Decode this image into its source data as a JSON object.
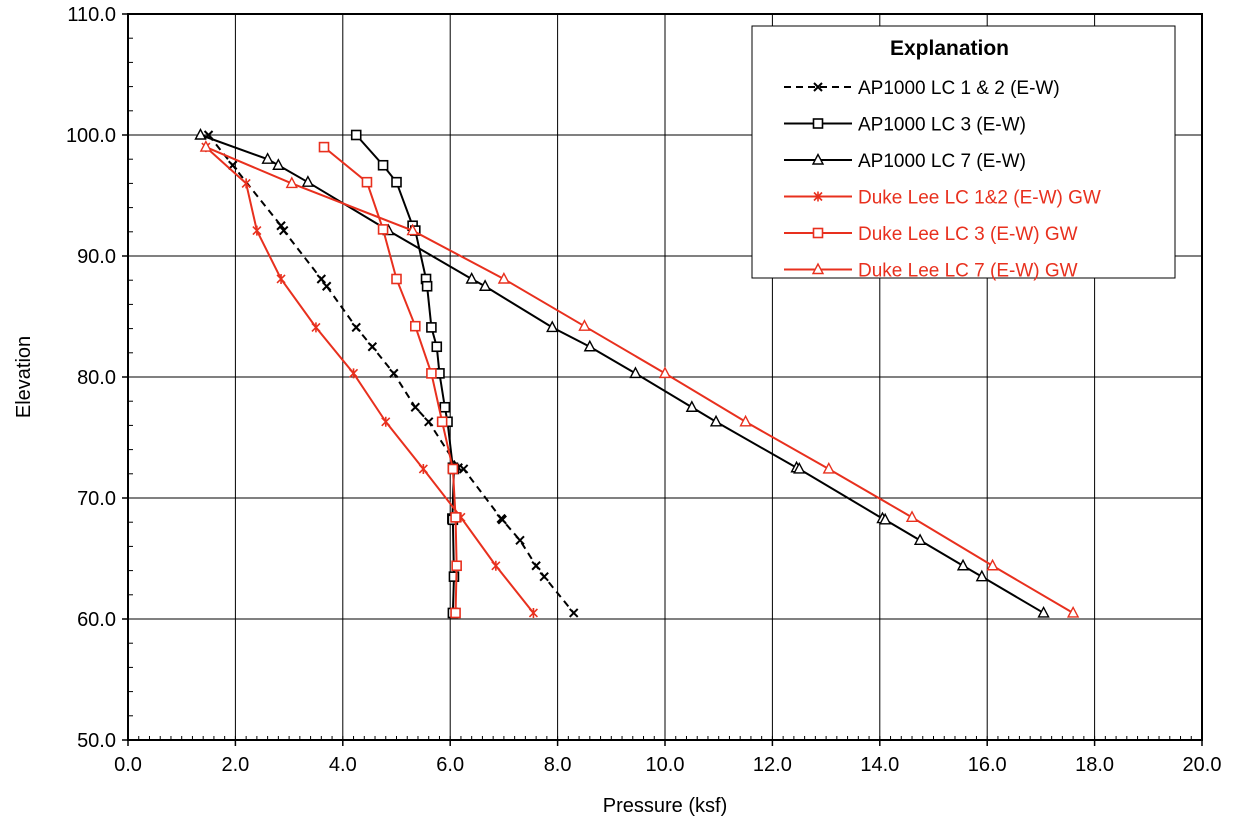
{
  "chart_data": {
    "type": "line",
    "title": "",
    "xlabel": "Pressure (ksf)",
    "ylabel": "Elevation",
    "xlim": [
      0,
      20
    ],
    "ylim": [
      50,
      110
    ],
    "x_ticks": [
      0,
      2,
      4,
      6,
      8,
      10,
      12,
      14,
      16,
      18,
      20
    ],
    "y_ticks": [
      50,
      60,
      70,
      80,
      90,
      100,
      110
    ],
    "x_tick_labels": [
      "0.0",
      "2.0",
      "4.0",
      "6.0",
      "8.0",
      "10.0",
      "12.0",
      "14.0",
      "16.0",
      "18.0",
      "20.0"
    ],
    "y_tick_labels": [
      "50.0",
      "60.0",
      "70.0",
      "80.0",
      "90.0",
      "100.0",
      "110.0"
    ],
    "grid": true,
    "legend": {
      "title": "Explanation",
      "position": "top-right"
    },
    "series": [
      {
        "name": "AP1000 LC 1 & 2 (E-W)",
        "color": "#000000",
        "dash": "dashed",
        "marker": "x",
        "points": [
          [
            1.5,
            100
          ],
          [
            1.95,
            97.5
          ],
          [
            2.85,
            92.5
          ],
          [
            2.9,
            92.1
          ],
          [
            3.6,
            88.1
          ],
          [
            3.7,
            87.5
          ],
          [
            4.25,
            84.1
          ],
          [
            4.55,
            82.5
          ],
          [
            4.95,
            80.3
          ],
          [
            5.35,
            77.5
          ],
          [
            5.6,
            76.3
          ],
          [
            6.15,
            72.5
          ],
          [
            6.25,
            72.4
          ],
          [
            6.95,
            68.3
          ],
          [
            6.97,
            68.2
          ],
          [
            7.3,
            66.5
          ],
          [
            7.6,
            64.4
          ],
          [
            7.75,
            63.5
          ],
          [
            8.3,
            60.5
          ]
        ]
      },
      {
        "name": "AP1000 LC 3 (E-W)",
        "color": "#000000",
        "dash": "solid",
        "marker": "square",
        "points": [
          [
            4.25,
            100
          ],
          [
            4.75,
            97.5
          ],
          [
            5.0,
            96.1
          ],
          [
            5.3,
            92.5
          ],
          [
            5.35,
            92.1
          ],
          [
            5.55,
            88.1
          ],
          [
            5.57,
            87.5
          ],
          [
            5.65,
            84.1
          ],
          [
            5.75,
            82.5
          ],
          [
            5.8,
            80.3
          ],
          [
            5.9,
            77.5
          ],
          [
            5.95,
            76.3
          ],
          [
            6.05,
            72.5
          ],
          [
            6.07,
            72.4
          ],
          [
            6.04,
            68.3
          ],
          [
            6.05,
            68.2
          ],
          [
            6.07,
            63.5
          ],
          [
            6.05,
            60.5
          ]
        ]
      },
      {
        "name": "AP1000 LC 7 (E-W)",
        "color": "#000000",
        "dash": "solid",
        "marker": "triangle",
        "points": [
          [
            1.35,
            100
          ],
          [
            2.6,
            98
          ],
          [
            2.8,
            97.5
          ],
          [
            3.35,
            96.1
          ],
          [
            4.85,
            92.1
          ],
          [
            6.4,
            88.1
          ],
          [
            6.65,
            87.5
          ],
          [
            7.9,
            84.1
          ],
          [
            8.6,
            82.5
          ],
          [
            9.45,
            80.3
          ],
          [
            10.5,
            77.5
          ],
          [
            10.95,
            76.3
          ],
          [
            12.45,
            72.5
          ],
          [
            12.5,
            72.4
          ],
          [
            14.05,
            68.3
          ],
          [
            14.1,
            68.2
          ],
          [
            14.75,
            66.5
          ],
          [
            15.55,
            64.4
          ],
          [
            15.9,
            63.5
          ],
          [
            17.05,
            60.5
          ]
        ]
      },
      {
        "name": "Duke Lee LC 1&2 (E-W) GW",
        "color": "#e8301e",
        "dash": "solid",
        "marker": "star",
        "points": [
          [
            1.45,
            99
          ],
          [
            2.2,
            96
          ],
          [
            2.4,
            92.1
          ],
          [
            2.85,
            88.1
          ],
          [
            3.5,
            84.1
          ],
          [
            4.2,
            80.3
          ],
          [
            4.8,
            76.3
          ],
          [
            5.5,
            72.4
          ],
          [
            6.2,
            68.4
          ],
          [
            6.85,
            64.4
          ],
          [
            7.55,
            60.5
          ]
        ]
      },
      {
        "name": "Duke Lee LC 3 (E-W) GW",
        "color": "#e8301e",
        "dash": "solid",
        "marker": "square",
        "points": [
          [
            3.65,
            99
          ],
          [
            4.45,
            96.1
          ],
          [
            4.75,
            92.2
          ],
          [
            5.0,
            88.1
          ],
          [
            5.35,
            84.2
          ],
          [
            5.65,
            80.3
          ],
          [
            5.85,
            76.3
          ],
          [
            6.05,
            72.4
          ],
          [
            6.1,
            68.4
          ],
          [
            6.12,
            64.4
          ],
          [
            6.1,
            60.5
          ]
        ]
      },
      {
        "name": "Duke Lee LC 7 (E-W) GW",
        "color": "#e8301e",
        "dash": "solid",
        "marker": "triangle",
        "points": [
          [
            1.45,
            99
          ],
          [
            3.05,
            96
          ],
          [
            5.3,
            92.1
          ],
          [
            7.0,
            88.1
          ],
          [
            8.5,
            84.2
          ],
          [
            10.0,
            80.3
          ],
          [
            11.5,
            76.3
          ],
          [
            13.05,
            72.4
          ],
          [
            14.6,
            68.4
          ],
          [
            16.1,
            64.4
          ],
          [
            17.6,
            60.5
          ]
        ]
      }
    ]
  }
}
